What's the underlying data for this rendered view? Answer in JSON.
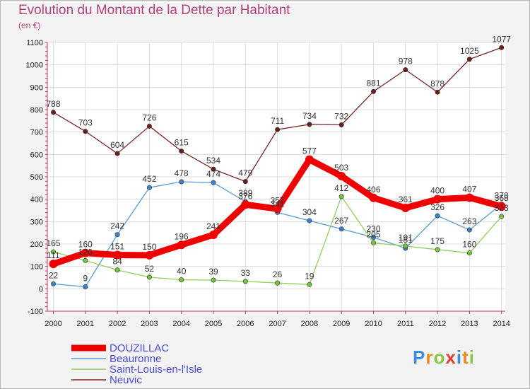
{
  "header": {
    "title": "Evolution du Montant de la Dette par Habitant",
    "unit": "(en €)"
  },
  "logo_text": "Proxiti",
  "chart_data": {
    "type": "line",
    "title": "Evolution du Montant de la Dette par Habitant",
    "ylabel": "(en €)",
    "x": [
      "2000",
      "2001",
      "2002",
      "2003",
      "2004",
      "2005",
      "2006",
      "2007",
      "2008",
      "2009",
      "2010",
      "2011",
      "2012",
      "2013",
      "2014"
    ],
    "ylim": [
      -100,
      1100
    ],
    "yticks": [
      "-100",
      "0",
      "100",
      "200",
      "300",
      "400",
      "500",
      "600",
      "700",
      "800",
      "900",
      "1000",
      "1100"
    ],
    "grid": true,
    "legend_position": "bottom-left",
    "series": [
      {
        "name": "DOUZILLAC",
        "color": "#ee0000",
        "values": [
          111,
          160,
          151,
          150,
          196,
          241,
          376,
          357,
          577,
          503,
          406,
          361,
          400,
          407,
          368
        ],
        "labels": [
          "111",
          "160",
          "151",
          "150",
          "196",
          "241",
          "376",
          "357",
          "577",
          "503",
          "406",
          "361",
          "400",
          "407",
          "368"
        ]
      },
      {
        "name": "Beauronne",
        "color": "#5b9bd5",
        "values": [
          22,
          9,
          242,
          452,
          478,
          474,
          389,
          341,
          304,
          267,
          230,
          181,
          326,
          263,
          378
        ],
        "labels": [
          "22",
          "9",
          "242",
          "452",
          "478",
          "474",
          "389",
          "341",
          "304",
          "267",
          "230",
          "181",
          "326",
          "263",
          "378"
        ]
      },
      {
        "name": "Saint-Louis-en-l'Isle",
        "color": "#8fd05a",
        "values": [
          165,
          126,
          84,
          52,
          40,
          39,
          33,
          26,
          19,
          412,
          205,
          191,
          175,
          160,
          323
        ],
        "labels": [
          "165",
          "126",
          "84",
          "52",
          "40",
          "39",
          "33",
          "26",
          "19",
          "412",
          "205",
          "191",
          "175",
          "160",
          "323"
        ]
      },
      {
        "name": "Neuvic",
        "color": "#7a2525",
        "values": [
          788,
          703,
          604,
          726,
          615,
          534,
          479,
          711,
          734,
          732,
          881,
          978,
          878,
          1025,
          1077
        ],
        "labels": [
          "788",
          "703",
          "604",
          "726",
          "615",
          "534",
          "479",
          "711",
          "734",
          "732",
          "881",
          "978",
          "878",
          "1025",
          "1077"
        ]
      }
    ]
  }
}
